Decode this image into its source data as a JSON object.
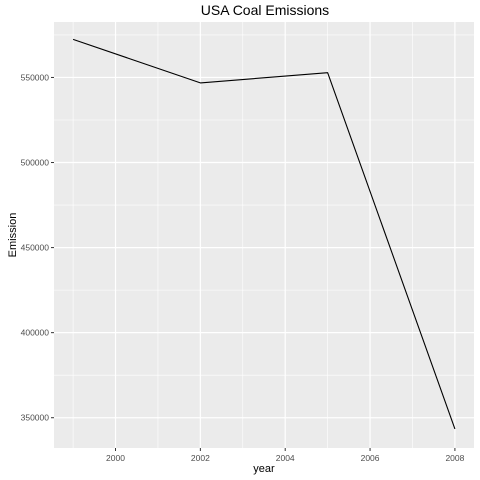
{
  "chart_data": {
    "type": "line",
    "title": "USA Coal Emissions",
    "xlabel": "year",
    "ylabel": "Emission",
    "x": [
      1999,
      2002,
      2005,
      2008
    ],
    "y": [
      572400,
      546800,
      552800,
      343400
    ],
    "xlim": [
      1998.55,
      2008.45
    ],
    "ylim": [
      332200,
      582600
    ],
    "xticks": [
      2000,
      2002,
      2004,
      2006,
      2008
    ],
    "xtick_labels": [
      "2000",
      "2002",
      "2004",
      "2006",
      "2008"
    ],
    "yticks": [
      350000,
      400000,
      450000,
      500000,
      550000
    ],
    "ytick_labels": [
      "350000",
      "400000",
      "450000",
      "500000",
      "550000"
    ],
    "grid": true,
    "legend": "none",
    "colors": {
      "panel": "#ebebeb",
      "grid": "#ffffff",
      "line": "#000000",
      "tick_text": "#4d4d4d",
      "tick_mark": "#333333"
    }
  }
}
